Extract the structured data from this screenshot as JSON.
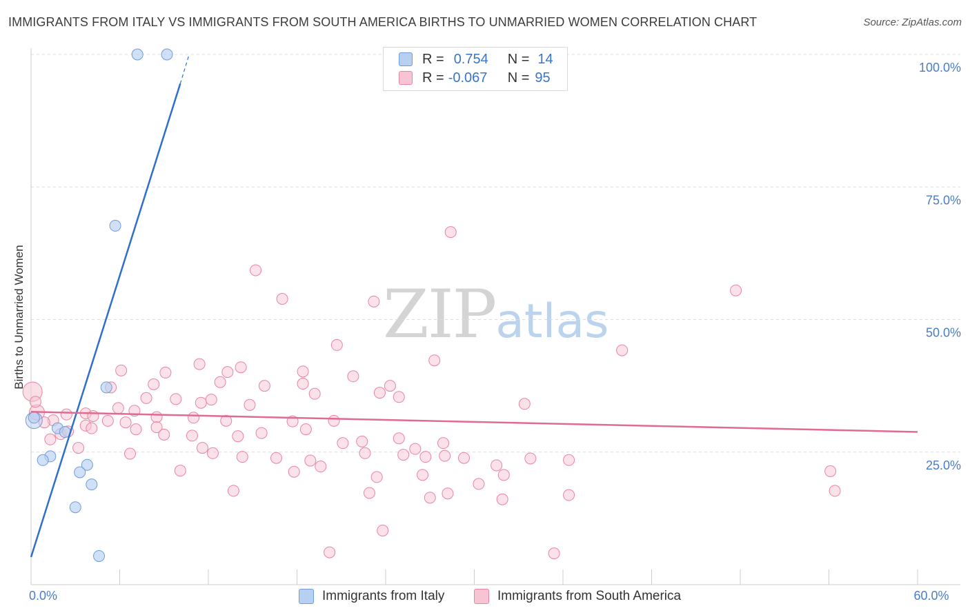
{
  "title": "IMMIGRANTS FROM ITALY VS IMMIGRANTS FROM SOUTH AMERICA BIRTHS TO UNMARRIED WOMEN CORRELATION CHART",
  "source": "Source: ZipAtlas.com",
  "watermark": {
    "zip": "ZIP",
    "atlas": "atlas"
  },
  "legend": {
    "italy": {
      "r_label": "R =",
      "r_value": "0.754",
      "n_label": "N =",
      "n_value": "14"
    },
    "south_america": {
      "r_label": "R =",
      "r_value": "-0.067",
      "n_label": "N =",
      "n_value": "95"
    }
  },
  "colors": {
    "italy_fill": "#b7d0f2",
    "italy_stroke": "#6f9bd8",
    "italy_line": "#2f6fcb",
    "sa_fill": "#f8c4d4",
    "sa_stroke": "#e8849f",
    "sa_line": "#e06a91",
    "axis_text": "#4a7cc7",
    "grid": "#dcdcdc"
  },
  "chart_data": {
    "type": "scatter",
    "title": "IMMIGRANTS FROM ITALY VS IMMIGRANTS FROM SOUTH AMERICA BIRTHS TO UNMARRIED WOMEN CORRELATION CHART",
    "xlabel": "",
    "ylabel": "Births to Unmarried Women",
    "xlim": [
      0,
      60
    ],
    "ylim": [
      0,
      104
    ],
    "x_tick_labels": [
      {
        "value": 0,
        "label": "0.0%"
      },
      {
        "value": 60,
        "label": "60.0%"
      }
    ],
    "y_tick_labels": [
      {
        "value": 25,
        "label": "25.0%"
      },
      {
        "value": 50,
        "label": "50.0%"
      },
      {
        "value": 75,
        "label": "75.0%"
      },
      {
        "value": 100,
        "label": "100.0%"
      }
    ],
    "x_minor_ticks": [
      0,
      6,
      12,
      18,
      24,
      30,
      36,
      42,
      48,
      54,
      60
    ],
    "series": [
      {
        "name": "Immigrants from Italy",
        "trendline": {
          "x": [
            0,
            10.1
          ],
          "y": [
            5.2,
            94.5
          ],
          "dashed_to": [
            10.7,
            100
          ]
        },
        "points": [
          {
            "x": 7.2,
            "y": 100
          },
          {
            "x": 9.2,
            "y": 100
          },
          {
            "x": 5.7,
            "y": 67.7
          },
          {
            "x": 5.1,
            "y": 37.2
          },
          {
            "x": 0.2,
            "y": 31.5
          },
          {
            "x": 1.8,
            "y": 29.5
          },
          {
            "x": 2.3,
            "y": 28.8
          },
          {
            "x": 1.3,
            "y": 24.2
          },
          {
            "x": 0.8,
            "y": 23.5
          },
          {
            "x": 3.8,
            "y": 22.6
          },
          {
            "x": 3.3,
            "y": 21.2
          },
          {
            "x": 4.1,
            "y": 18.9
          },
          {
            "x": 3.0,
            "y": 14.6
          },
          {
            "x": 4.6,
            "y": 5.4
          }
        ]
      },
      {
        "name": "Immigrants from South America",
        "trendline": {
          "x": [
            0,
            60
          ],
          "y": [
            32.6,
            28.8
          ]
        },
        "points": [
          {
            "x": 28.4,
            "y": 66.5
          },
          {
            "x": 15.2,
            "y": 59.3
          },
          {
            "x": 47.7,
            "y": 55.5
          },
          {
            "x": 17.0,
            "y": 53.9
          },
          {
            "x": 23.2,
            "y": 53.4
          },
          {
            "x": 20.7,
            "y": 45.2
          },
          {
            "x": 40.0,
            "y": 44.2
          },
          {
            "x": 27.3,
            "y": 42.3
          },
          {
            "x": 11.4,
            "y": 41.6
          },
          {
            "x": 14.2,
            "y": 41.0
          },
          {
            "x": 6.1,
            "y": 40.4
          },
          {
            "x": 9.1,
            "y": 40.0
          },
          {
            "x": 13.3,
            "y": 40.1
          },
          {
            "x": 18.4,
            "y": 40.2
          },
          {
            "x": 21.8,
            "y": 39.3
          },
          {
            "x": 12.8,
            "y": 38.2
          },
          {
            "x": 18.4,
            "y": 37.9
          },
          {
            "x": 8.3,
            "y": 37.8
          },
          {
            "x": 24.3,
            "y": 37.5
          },
          {
            "x": 15.8,
            "y": 37.5
          },
          {
            "x": 5.4,
            "y": 37.2
          },
          {
            "x": 23.6,
            "y": 36.2
          },
          {
            "x": 19.2,
            "y": 36.0
          },
          {
            "x": 24.9,
            "y": 35.4
          },
          {
            "x": 7.8,
            "y": 35.2
          },
          {
            "x": 9.8,
            "y": 35.0
          },
          {
            "x": 12.2,
            "y": 34.9
          },
          {
            "x": 11.5,
            "y": 34.3
          },
          {
            "x": 33.4,
            "y": 34.1
          },
          {
            "x": 0.3,
            "y": 34.5
          },
          {
            "x": 14.8,
            "y": 33.9
          },
          {
            "x": 5.9,
            "y": 33.3
          },
          {
            "x": 7.0,
            "y": 32.8
          },
          {
            "x": 2.4,
            "y": 32.1
          },
          {
            "x": 3.7,
            "y": 32.3
          },
          {
            "x": 4.2,
            "y": 31.8
          },
          {
            "x": 8.5,
            "y": 31.6
          },
          {
            "x": 11.0,
            "y": 31.5
          },
          {
            "x": 1.5,
            "y": 31.0
          },
          {
            "x": 5.2,
            "y": 30.9
          },
          {
            "x": 6.4,
            "y": 30.6
          },
          {
            "x": 13.2,
            "y": 30.9
          },
          {
            "x": 17.7,
            "y": 30.8
          },
          {
            "x": 20.5,
            "y": 30.9
          },
          {
            "x": 3.7,
            "y": 30.0
          },
          {
            "x": 4.1,
            "y": 29.5
          },
          {
            "x": 7.1,
            "y": 29.3
          },
          {
            "x": 8.5,
            "y": 29.7
          },
          {
            "x": 9.0,
            "y": 28.3
          },
          {
            "x": 10.9,
            "y": 28.1
          },
          {
            "x": 14.0,
            "y": 28.0
          },
          {
            "x": 15.6,
            "y": 28.6
          },
          {
            "x": 18.6,
            "y": 29.3
          },
          {
            "x": 22.4,
            "y": 27.0
          },
          {
            "x": 24.9,
            "y": 27.6
          },
          {
            "x": 25.2,
            "y": 24.5
          },
          {
            "x": 27.9,
            "y": 26.7
          },
          {
            "x": 0.9,
            "y": 30.6
          },
          {
            "x": 2.0,
            "y": 28.4
          },
          {
            "x": 1.3,
            "y": 27.4
          },
          {
            "x": 2.5,
            "y": 28.9
          },
          {
            "x": 3.2,
            "y": 25.8
          },
          {
            "x": 6.7,
            "y": 24.7
          },
          {
            "x": 11.6,
            "y": 25.8
          },
          {
            "x": 12.3,
            "y": 24.8
          },
          {
            "x": 14.3,
            "y": 24.1
          },
          {
            "x": 16.6,
            "y": 23.9
          },
          {
            "x": 18.9,
            "y": 23.4
          },
          {
            "x": 21.1,
            "y": 26.7
          },
          {
            "x": 22.6,
            "y": 24.8
          },
          {
            "x": 23.4,
            "y": 20.3
          },
          {
            "x": 26.0,
            "y": 25.6
          },
          {
            "x": 26.7,
            "y": 24.1
          },
          {
            "x": 28.0,
            "y": 24.3
          },
          {
            "x": 29.3,
            "y": 23.9
          },
          {
            "x": 30.3,
            "y": 19.0
          },
          {
            "x": 32.0,
            "y": 20.7
          },
          {
            "x": 31.9,
            "y": 16.1
          },
          {
            "x": 36.4,
            "y": 23.5
          },
          {
            "x": 33.8,
            "y": 23.8
          },
          {
            "x": 36.4,
            "y": 16.9
          },
          {
            "x": 22.9,
            "y": 17.3
          },
          {
            "x": 19.6,
            "y": 22.3
          },
          {
            "x": 17.8,
            "y": 21.3
          },
          {
            "x": 10.1,
            "y": 21.5
          },
          {
            "x": 13.7,
            "y": 17.7
          },
          {
            "x": 27.0,
            "y": 16.4
          },
          {
            "x": 28.2,
            "y": 17.2
          },
          {
            "x": 54.1,
            "y": 21.4
          },
          {
            "x": 54.4,
            "y": 17.7
          },
          {
            "x": 20.2,
            "y": 6.1
          },
          {
            "x": 23.8,
            "y": 10.2
          },
          {
            "x": 35.4,
            "y": 5.9
          },
          {
            "x": 26.5,
            "y": 20.7
          },
          {
            "x": 31.5,
            "y": 22.5
          }
        ]
      }
    ]
  },
  "bottom_legend": {
    "italy": "Immigrants from Italy",
    "south_america": "Immigrants from South America"
  }
}
